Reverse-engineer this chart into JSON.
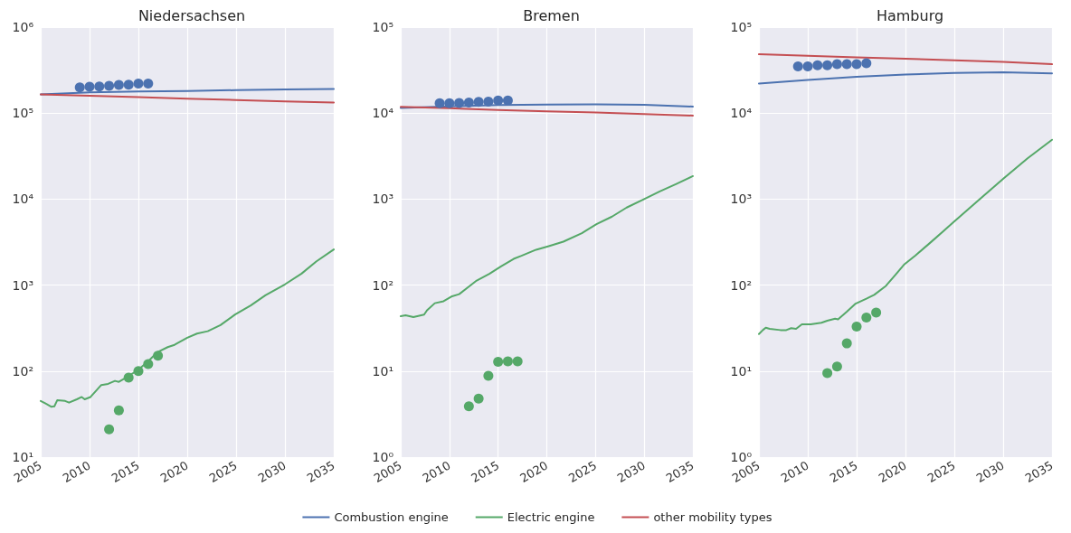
{
  "chart_data": [
    {
      "type": "line",
      "title": "Niedersachsen",
      "xlim": [
        2005,
        2035
      ],
      "xticks": [
        2005,
        2010,
        2015,
        2020,
        2025,
        2030,
        2035
      ],
      "ylim": [
        10,
        1000000
      ],
      "yticks": [
        {
          "value": 10,
          "label": "10¹"
        },
        {
          "value": 100,
          "label": "10²"
        },
        {
          "value": 1000,
          "label": "10³"
        },
        {
          "value": 10000,
          "label": "10⁴"
        },
        {
          "value": 100000,
          "label": "10⁵"
        },
        {
          "value": 1000000,
          "label": "10⁶"
        }
      ],
      "log": "y",
      "grid": true,
      "series": [
        {
          "color": "#4c72b0",
          "x": [
            2005,
            2010,
            2015,
            2020,
            2025,
            2030,
            2035
          ],
          "values": [
            165000,
            174000,
            178000,
            181000,
            185000,
            188000,
            191000
          ]
        },
        {
          "color": "#55a868",
          "x": [
            2005,
            2005.5,
            2006.1,
            2006.4,
            2006.7,
            2007.5,
            2007.9,
            2008.7,
            2009.2,
            2009.5,
            2010.1,
            2010.6,
            2011.2,
            2011.9,
            2012.6,
            2013,
            2013.8,
            2014.9,
            2016,
            2016.9,
            2018,
            2018.7,
            2020,
            2021,
            2022.1,
            2023.4,
            2024.9,
            2026.5,
            2028,
            2030,
            2031.7,
            2033.2,
            2035
          ],
          "values": [
            45,
            42,
            38.5,
            39,
            46,
            45,
            43,
            47,
            50,
            47,
            50,
            58,
            69,
            71,
            77,
            75,
            85,
            102,
            130,
            165,
            190,
            202,
            244,
            273,
            291,
            343,
            455,
            580,
            760,
            1020,
            1360,
            1880,
            2600
          ]
        },
        {
          "color": "#c44e52",
          "x": [
            2005,
            2010,
            2015,
            2020,
            2025,
            2030,
            2035
          ],
          "values": [
            165000,
            159000,
            153000,
            147000,
            142000,
            137000,
            133000
          ]
        },
        {
          "type": "scatter",
          "marker": "circle",
          "color": "#4c72b0",
          "x": [
            2009,
            2010,
            2011,
            2012,
            2013,
            2014,
            2015,
            2016
          ],
          "values": [
            199000,
            203000,
            204000,
            208000,
            213000,
            214000,
            221000,
            221000
          ]
        },
        {
          "type": "scatter",
          "marker": "circle",
          "color": "#55a868",
          "x": [
            2012,
            2013,
            2014,
            2015,
            2016,
            2017
          ],
          "values": [
            21,
            35,
            84,
            100,
            121,
            151
          ]
        }
      ]
    },
    {
      "type": "line",
      "title": "Bremen",
      "xlim": [
        2005,
        2035
      ],
      "xticks": [
        2005,
        2010,
        2015,
        2020,
        2025,
        2030,
        2035
      ],
      "ylim": [
        1,
        100000
      ],
      "yticks": [
        {
          "value": 1,
          "label": "10⁰"
        },
        {
          "value": 10,
          "label": "10¹"
        },
        {
          "value": 100,
          "label": "10²"
        },
        {
          "value": 1000,
          "label": "10³"
        },
        {
          "value": 10000,
          "label": "10⁴"
        },
        {
          "value": 100000,
          "label": "10⁵"
        }
      ],
      "log": "y",
      "grid": true,
      "legend": "bottom",
      "series": [
        {
          "name": "Combustion engine",
          "color": "#4c72b0",
          "x": [
            2005,
            2010,
            2015,
            2020,
            2025,
            2030,
            2035
          ],
          "values": [
            11500,
            12000,
            12400,
            12600,
            12650,
            12500,
            11900
          ]
        },
        {
          "name": "Electric engine",
          "color": "#55a868",
          "x": [
            2005,
            2005.5,
            2006.3,
            2007.4,
            2007.7,
            2008.5,
            2009.4,
            2010.2,
            2011,
            2012,
            2012.8,
            2014.1,
            2015.3,
            2016.6,
            2017.4,
            2018.9,
            2020.2,
            2021.7,
            2023.6,
            2025.1,
            2026.7,
            2028.2,
            2030,
            2031.6,
            2033.3,
            2035
          ],
          "values": [
            43.5,
            44.5,
            42.5,
            45.4,
            51,
            61.6,
            65,
            73.6,
            78.5,
            96,
            113,
            135,
            165,
            202,
            219,
            258,
            284,
            320,
            402,
            512,
            626,
            798,
            1000,
            1230,
            1500,
            1850
          ]
        },
        {
          "name": "other mobility types",
          "color": "#c44e52",
          "x": [
            2005,
            2010,
            2015,
            2020,
            2025,
            2030,
            2035
          ],
          "values": [
            11850,
            11400,
            10900,
            10500,
            10150,
            9750,
            9350
          ]
        },
        {
          "type": "scatter",
          "marker": "circle",
          "color": "#4c72b0",
          "x": [
            2009,
            2010,
            2011,
            2012,
            2013,
            2014,
            2015,
            2016
          ],
          "values": [
            13000,
            13000,
            13100,
            13300,
            13500,
            13600,
            14000,
            14000
          ]
        },
        {
          "type": "scatter",
          "marker": "circle",
          "color": "#55a868",
          "x": [
            2012,
            2013,
            2014,
            2015,
            2016,
            2017
          ],
          "values": [
            3.9,
            4.8,
            8.8,
            12.8,
            13,
            13
          ]
        }
      ]
    },
    {
      "type": "line",
      "title": "Hamburg",
      "xlim": [
        2005,
        2035
      ],
      "xticks": [
        2005,
        2010,
        2015,
        2020,
        2025,
        2030,
        2035
      ],
      "ylim": [
        1,
        100000
      ],
      "yticks": [
        {
          "value": 1,
          "label": "10⁰"
        },
        {
          "value": 10,
          "label": "10¹"
        },
        {
          "value": 100,
          "label": "10²"
        },
        {
          "value": 1000,
          "label": "10³"
        },
        {
          "value": 10000,
          "label": "10⁴"
        },
        {
          "value": 100000,
          "label": "10⁵"
        }
      ],
      "log": "y",
      "grid": true,
      "series": [
        {
          "color": "#4c72b0",
          "x": [
            2005,
            2010,
            2015,
            2020,
            2025,
            2030,
            2035
          ],
          "values": [
            22100,
            24300,
            26500,
            28100,
            29300,
            29800,
            28900
          ]
        },
        {
          "color": "#55a868",
          "x": [
            2005,
            2005.4,
            2005.7,
            2006.1,
            2007.2,
            2007.8,
            2008.3,
            2008.8,
            2009.4,
            2010.3,
            2011.4,
            2012,
            2012.8,
            2013.1,
            2014,
            2014.9,
            2016,
            2016.8,
            2018,
            2019,
            2019.9,
            2021,
            2022.7,
            2024.8,
            2027.6,
            2030.1,
            2032.5,
            2035
          ],
          "values": [
            27,
            30,
            32,
            31,
            30,
            30,
            31.6,
            31,
            35,
            35,
            36.5,
            38.5,
            40.8,
            40,
            49,
            61,
            69.5,
            77,
            98,
            133,
            175,
            220,
            323,
            524,
            1000,
            1760,
            2980,
            4900
          ]
        },
        {
          "color": "#c44e52",
          "x": [
            2005,
            2010,
            2015,
            2020,
            2025,
            2030,
            2035
          ],
          "values": [
            48300,
            46400,
            44600,
            42800,
            41100,
            39500,
            37000
          ]
        },
        {
          "type": "scatter",
          "marker": "circle",
          "color": "#4c72b0",
          "x": [
            2009,
            2010,
            2011,
            2012,
            2013,
            2014,
            2015,
            2016
          ],
          "values": [
            35000,
            35000,
            36000,
            36000,
            37000,
            37000,
            37000,
            38000
          ]
        },
        {
          "type": "scatter",
          "marker": "circle",
          "color": "#55a868",
          "x": [
            2012,
            2013,
            2014,
            2015,
            2016,
            2017
          ],
          "values": [
            9.5,
            11.3,
            21,
            33,
            42,
            48
          ]
        }
      ]
    }
  ]
}
